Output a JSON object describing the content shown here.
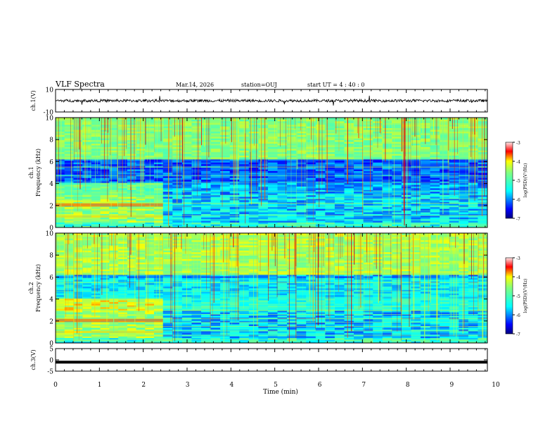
{
  "header": {
    "title": "VLF Spectra",
    "date": "Mar.14, 2026",
    "station": "station=OUJ",
    "start": "start  UT  =   4 : 40 : 0"
  },
  "chart_data": [
    {
      "type": "line",
      "name": "ch1-waveform",
      "ylabel": "ch.1(V)",
      "ylim": [
        -10,
        10
      ],
      "yticks": [
        "10",
        "-10"
      ],
      "xlim": [
        0,
        10
      ],
      "description_values": {
        "baseline_v": 0,
        "noise_amplitude_v": 1.5
      }
    },
    {
      "type": "heatmap",
      "name": "ch1-spectrogram",
      "ylabel_line1": "ch.1",
      "ylabel_line2": "Frequency (kHz)",
      "ylim": [
        0,
        10
      ],
      "yticks": [
        "0",
        "2",
        "4",
        "6",
        "8",
        "10"
      ],
      "xlim": [
        0,
        10
      ],
      "colorbar": {
        "label": "log(PSD)(V²/Hz)",
        "range": [
          -7,
          -3
        ],
        "ticks": [
          "-3",
          "-4",
          "-5",
          "-6",
          "-7"
        ]
      }
    },
    {
      "type": "heatmap",
      "name": "ch2-spectrogram",
      "ylabel_line1": "ch.2",
      "ylabel_line2": "Frequency (kHz)",
      "ylim": [
        0,
        10
      ],
      "yticks": [
        "0",
        "2",
        "4",
        "6",
        "8",
        "10"
      ],
      "xlim": [
        0,
        10
      ],
      "colorbar": {
        "label": "log(PSD)(V²/Hz)",
        "range": [
          -7,
          -3
        ],
        "ticks": [
          "-3",
          "-4",
          "-5",
          "-6",
          "-7"
        ]
      }
    },
    {
      "type": "line",
      "name": "ch3-waveform",
      "ylabel": "ch.3(V)",
      "ylim": [
        -5,
        5
      ],
      "yticks": [
        "5",
        "0",
        "-5"
      ],
      "xlim": [
        0,
        10
      ],
      "description_values": {
        "constant_v": -1
      }
    }
  ],
  "xaxis": {
    "label": "Time  (min)",
    "ticks": [
      "0",
      "1",
      "2",
      "3",
      "4",
      "5",
      "6",
      "7",
      "8",
      "9",
      "10"
    ]
  },
  "colors": {
    "jet": [
      "#000080",
      "#0000ff",
      "#0080ff",
      "#00ffff",
      "#80ff80",
      "#ffff00",
      "#ff8000",
      "#ff0000",
      "#800000"
    ]
  }
}
